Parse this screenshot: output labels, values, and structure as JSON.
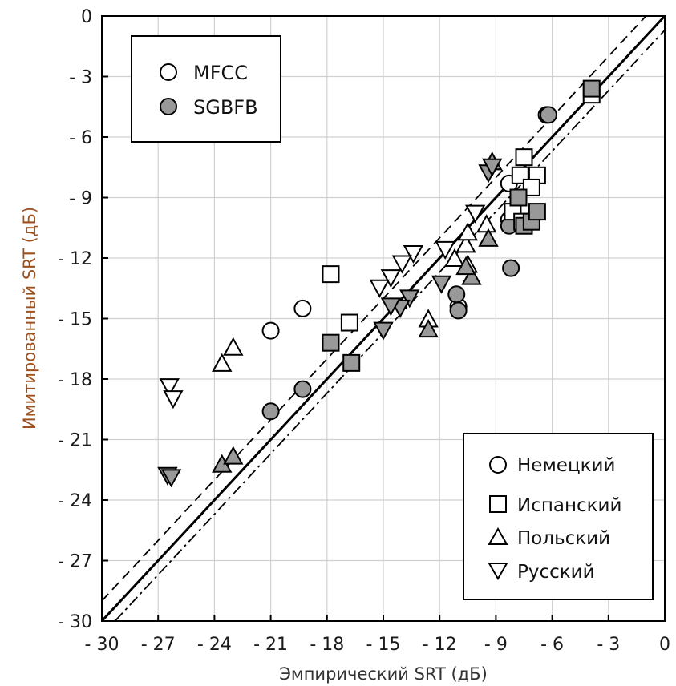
{
  "chart_data": {
    "type": "scatter",
    "title": "",
    "xlabel": "Эмпирический SRT (дБ)",
    "ylabel": "Имитированный SRT (дБ)",
    "xlim": [
      -30,
      0
    ],
    "ylim": [
      -30,
      0
    ],
    "xticks": [
      -30,
      -27,
      -24,
      -21,
      -18,
      -15,
      -12,
      -9,
      -6,
      -3,
      0
    ],
    "yticks": [
      0,
      -3,
      -6,
      -9,
      -12,
      -15,
      -18,
      -21,
      -24,
      -27,
      -30
    ],
    "xtick_labels": [
      "- 30",
      "- 27",
      "- 24",
      "- 21",
      "- 18",
      "- 15",
      "- 12",
      "- 9",
      "- 6",
      "- 3",
      "0"
    ],
    "ytick_labels": [
      "0",
      "- 3",
      "- 6",
      "- 9",
      "- 12",
      "- 15",
      "- 18",
      "- 21",
      "- 24",
      "- 27",
      "- 30"
    ],
    "grid": true,
    "legend_feature": {
      "placement": "top-left",
      "entries": [
        {
          "label": "MFCC",
          "fill": "#ffffff"
        },
        {
          "label": "SGBFB",
          "fill": "#999999"
        }
      ]
    },
    "legend_language": {
      "placement": "bottom-right",
      "entries": [
        {
          "label": "Немецкий",
          "marker": "circle"
        },
        {
          "label": "Испанский",
          "marker": "square"
        },
        {
          "label": "Польский",
          "marker": "triangle-up"
        },
        {
          "label": "Русский",
          "marker": "triangle-down"
        }
      ]
    },
    "reference_lines": [
      {
        "style": "solid",
        "slope": 1,
        "intercept": 0
      },
      {
        "style": "dashed",
        "slope": 1,
        "intercept": 1
      },
      {
        "style": "dashdot",
        "slope": 1,
        "intercept": -0.7
      }
    ],
    "series": [
      {
        "feature": "MFCC",
        "language": "Немецкий",
        "marker": "circle",
        "fill": "#ffffff",
        "points": [
          [
            -21.0,
            -15.6
          ],
          [
            -19.3,
            -14.5
          ],
          [
            -8.3,
            -8.3
          ],
          [
            -6.3,
            -4.9
          ],
          [
            -11.0,
            -14.4
          ],
          [
            -8.3,
            -10.1
          ]
        ]
      },
      {
        "feature": "SGBFB",
        "language": "Немецкий",
        "marker": "circle",
        "fill": "#999999",
        "points": [
          [
            -21.0,
            -19.6
          ],
          [
            -19.3,
            -18.5
          ],
          [
            -6.2,
            -4.9
          ],
          [
            -11.1,
            -13.8
          ],
          [
            -8.2,
            -12.5
          ],
          [
            -8.3,
            -10.4
          ],
          [
            -11.0,
            -14.6
          ]
        ]
      },
      {
        "feature": "MFCC",
        "language": "Испанский",
        "marker": "square",
        "fill": "#ffffff",
        "points": [
          [
            -17.8,
            -12.8
          ],
          [
            -16.8,
            -15.2
          ],
          [
            -3.9,
            -3.9
          ],
          [
            -7.5,
            -7.0
          ],
          [
            -7.7,
            -7.9
          ],
          [
            -6.8,
            -7.9
          ],
          [
            -7.1,
            -8.5
          ],
          [
            -8.1,
            -9.7
          ],
          [
            -7.6,
            -10.2
          ]
        ]
      },
      {
        "feature": "SGBFB",
        "language": "Испанский",
        "marker": "square",
        "fill": "#999999",
        "points": [
          [
            -17.8,
            -16.2
          ],
          [
            -16.7,
            -17.2
          ],
          [
            -3.9,
            -3.6
          ],
          [
            -7.8,
            -9.0
          ],
          [
            -7.5,
            -10.4
          ],
          [
            -7.1,
            -10.2
          ],
          [
            -6.8,
            -9.7
          ]
        ]
      },
      {
        "feature": "MFCC",
        "language": "Польский",
        "marker": "triangle-up",
        "fill": "#ffffff",
        "points": [
          [
            -23.6,
            -17.2
          ],
          [
            -23.0,
            -16.4
          ],
          [
            -9.5,
            -10.3
          ],
          [
            -10.6,
            -11.3
          ],
          [
            -10.5,
            -10.7
          ],
          [
            -11.2,
            -12.0
          ],
          [
            -10.5,
            -12.3
          ],
          [
            -12.6,
            -15.0
          ],
          [
            -9.2,
            -7.2
          ]
        ]
      },
      {
        "feature": "SGBFB",
        "language": "Польский",
        "marker": "triangle-up",
        "fill": "#999999",
        "points": [
          [
            -23.6,
            -22.2
          ],
          [
            -23.0,
            -21.8
          ],
          [
            -9.2,
            -7.2
          ],
          [
            -9.4,
            -11.0
          ],
          [
            -10.3,
            -12.9
          ],
          [
            -12.6,
            -15.5
          ],
          [
            -10.6,
            -12.4
          ]
        ]
      },
      {
        "feature": "MFCC",
        "language": "Русский",
        "marker": "triangle-down",
        "fill": "#ffffff",
        "points": [
          [
            -26.4,
            -18.4
          ],
          [
            -26.2,
            -19.0
          ],
          [
            -10.1,
            -9.8
          ],
          [
            -11.7,
            -11.6
          ],
          [
            -13.4,
            -11.8
          ],
          [
            -14.0,
            -12.3
          ],
          [
            -14.6,
            -13.0
          ],
          [
            -15.2,
            -13.5
          ]
        ]
      },
      {
        "feature": "SGBFB",
        "language": "Русский",
        "marker": "triangle-down",
        "fill": "#999999",
        "points": [
          [
            -26.5,
            -22.8
          ],
          [
            -26.3,
            -22.9
          ],
          [
            -9.4,
            -7.8
          ],
          [
            -9.2,
            -7.5
          ],
          [
            -11.9,
            -13.3
          ],
          [
            -13.6,
            -14.0
          ],
          [
            -14.1,
            -14.5
          ],
          [
            -14.6,
            -14.4
          ],
          [
            -15.0,
            -15.6
          ]
        ]
      }
    ]
  }
}
